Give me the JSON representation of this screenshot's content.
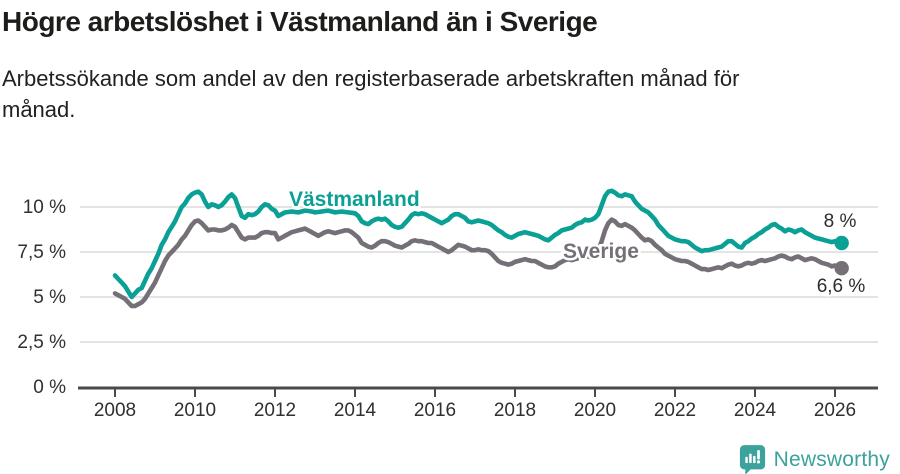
{
  "header": {
    "title": "Högre arbetslöshet i Västmanland än i Sverige",
    "subtitle": "Arbetssökande som andel av den registerbaserade arbetskraften månad för månad."
  },
  "colors": {
    "vastmanland": "#0ba095",
    "sverige": "#757077",
    "grid": "#dbdbdb",
    "axis": "#4a4a4a",
    "tick_label": "#303030",
    "end_label": "#2d2d2d",
    "brand_teal": "#3ba29c"
  },
  "chart_data": {
    "type": "line",
    "title": "Högre arbetslöshet i Västmanland än i Sverige",
    "xlabel": "",
    "ylabel": "",
    "grid": "horizontal",
    "legend_position": "inline-labels",
    "x_start_year": 2008,
    "x_step": "monthly",
    "x_end_year_fraction": 2026.17,
    "x_ticks": [
      2008,
      2010,
      2012,
      2014,
      2016,
      2018,
      2020,
      2022,
      2024,
      2026
    ],
    "x_tick_labels": [
      "2008",
      "2010",
      "2012",
      "2014",
      "2016",
      "2018",
      "2020",
      "2022",
      "2024",
      "2026"
    ],
    "y_ticks": [
      0,
      2.5,
      5,
      7.5,
      10
    ],
    "y_tick_labels": [
      "0 %",
      "2,5 %",
      "5 %",
      "7,5 %",
      "10 %"
    ],
    "ylim": [
      0,
      11.8
    ],
    "series": [
      {
        "name": "Västmanland",
        "end_label": "8 %",
        "last_value": 8.0,
        "values": [
          6.2,
          6.0,
          5.8,
          5.6,
          5.3,
          5.0,
          5.2,
          5.4,
          5.5,
          5.9,
          6.3,
          6.6,
          7.0,
          7.4,
          7.9,
          8.2,
          8.6,
          8.9,
          9.2,
          9.6,
          10.0,
          10.2,
          10.5,
          10.7,
          10.8,
          10.85,
          10.7,
          10.3,
          10.0,
          10.15,
          10.1,
          10.0,
          10.1,
          10.3,
          10.55,
          10.7,
          10.5,
          10.0,
          9.5,
          9.4,
          9.6,
          9.55,
          9.6,
          9.75,
          10.0,
          10.15,
          10.1,
          9.9,
          9.8,
          9.5,
          9.6,
          9.7,
          9.72,
          9.75,
          9.72,
          9.7,
          9.75,
          9.8,
          9.78,
          9.75,
          9.7,
          9.72,
          9.75,
          9.78,
          9.8,
          9.75,
          9.7,
          9.72,
          9.75,
          9.72,
          9.7,
          9.68,
          9.65,
          9.5,
          9.2,
          9.1,
          9.05,
          9.2,
          9.3,
          9.35,
          9.3,
          9.35,
          9.2,
          9.0,
          8.9,
          8.85,
          8.9,
          9.1,
          9.3,
          9.55,
          9.65,
          9.6,
          9.65,
          9.6,
          9.5,
          9.4,
          9.3,
          9.2,
          9.1,
          9.2,
          9.3,
          9.5,
          9.6,
          9.6,
          9.5,
          9.4,
          9.2,
          9.15,
          9.2,
          9.25,
          9.2,
          9.15,
          9.1,
          9.0,
          8.85,
          8.7,
          8.6,
          8.45,
          8.35,
          8.3,
          8.4,
          8.5,
          8.55,
          8.6,
          8.55,
          8.5,
          8.45,
          8.4,
          8.3,
          8.2,
          8.15,
          8.3,
          8.45,
          8.55,
          8.7,
          8.75,
          8.8,
          8.85,
          9.0,
          9.1,
          9.15,
          9.3,
          9.25,
          9.3,
          9.4,
          9.6,
          10.1,
          10.6,
          10.85,
          10.9,
          10.8,
          10.65,
          10.6,
          10.7,
          10.65,
          10.6,
          10.3,
          10.1,
          9.9,
          9.8,
          9.7,
          9.5,
          9.3,
          9.0,
          8.8,
          8.6,
          8.4,
          8.3,
          8.2,
          8.15,
          8.1,
          8.1,
          8.05,
          7.9,
          7.75,
          7.65,
          7.55,
          7.6,
          7.6,
          7.65,
          7.7,
          7.75,
          7.8,
          7.95,
          8.1,
          8.1,
          7.95,
          7.8,
          7.75,
          8.0,
          8.1,
          8.25,
          8.35,
          8.5,
          8.6,
          8.75,
          8.85,
          9.0,
          9.05,
          8.9,
          8.8,
          8.65,
          8.75,
          8.7,
          8.6,
          8.7,
          8.75,
          8.6,
          8.5,
          8.4,
          8.3,
          8.25,
          8.2,
          8.15,
          8.1,
          8.05,
          8.1,
          8.0,
          8.0
        ]
      },
      {
        "name": "Sverige",
        "end_label": "6,6 %",
        "last_value": 6.6,
        "values": [
          5.2,
          5.1,
          5.0,
          4.9,
          4.7,
          4.5,
          4.5,
          4.6,
          4.7,
          4.9,
          5.2,
          5.5,
          5.8,
          6.2,
          6.6,
          7.0,
          7.3,
          7.5,
          7.7,
          7.9,
          8.2,
          8.4,
          8.7,
          9.0,
          9.2,
          9.25,
          9.1,
          8.9,
          8.7,
          8.75,
          8.75,
          8.7,
          8.7,
          8.75,
          8.85,
          9.0,
          8.9,
          8.6,
          8.3,
          8.2,
          8.3,
          8.3,
          8.3,
          8.4,
          8.55,
          8.6,
          8.6,
          8.55,
          8.55,
          8.2,
          8.3,
          8.4,
          8.5,
          8.6,
          8.65,
          8.7,
          8.75,
          8.8,
          8.7,
          8.6,
          8.5,
          8.4,
          8.5,
          8.6,
          8.65,
          8.6,
          8.55,
          8.6,
          8.65,
          8.7,
          8.7,
          8.6,
          8.45,
          8.3,
          8.0,
          7.9,
          7.8,
          7.75,
          7.85,
          8.0,
          8.1,
          8.1,
          8.05,
          7.95,
          7.85,
          7.8,
          7.75,
          7.85,
          7.95,
          8.1,
          8.15,
          8.1,
          8.1,
          8.05,
          8.0,
          8.0,
          7.9,
          7.8,
          7.7,
          7.6,
          7.5,
          7.6,
          7.75,
          7.9,
          7.85,
          7.8,
          7.7,
          7.6,
          7.6,
          7.65,
          7.6,
          7.6,
          7.55,
          7.4,
          7.2,
          7.0,
          6.9,
          6.85,
          6.8,
          6.85,
          6.95,
          7.0,
          7.05,
          7.1,
          7.05,
          7.0,
          7.0,
          6.9,
          6.8,
          6.7,
          6.65,
          6.65,
          6.7,
          6.85,
          6.95,
          7.05,
          7.1,
          7.05,
          7.1,
          7.15,
          7.2,
          7.3,
          7.25,
          7.2,
          7.4,
          7.6,
          8.1,
          8.7,
          9.1,
          9.3,
          9.2,
          9.0,
          8.95,
          9.05,
          8.95,
          8.85,
          8.7,
          8.5,
          8.3,
          8.15,
          8.2,
          8.1,
          7.9,
          7.75,
          7.6,
          7.4,
          7.3,
          7.2,
          7.1,
          7.05,
          7.0,
          7.0,
          6.95,
          6.85,
          6.75,
          6.65,
          6.55,
          6.55,
          6.5,
          6.55,
          6.6,
          6.65,
          6.6,
          6.7,
          6.8,
          6.85,
          6.75,
          6.7,
          6.75,
          6.85,
          6.9,
          6.85,
          6.9,
          7.0,
          7.05,
          7.0,
          7.05,
          7.1,
          7.15,
          7.25,
          7.3,
          7.25,
          7.15,
          7.1,
          7.2,
          7.25,
          7.15,
          7.05,
          7.1,
          7.15,
          7.1,
          7.0,
          6.9,
          6.85,
          6.8,
          6.7,
          6.75,
          6.65,
          6.6
        ]
      }
    ]
  },
  "footer": {
    "brand": "Newsworthy",
    "logo_icon": "newsworthy-speech-bubble-bar-chart-icon"
  }
}
